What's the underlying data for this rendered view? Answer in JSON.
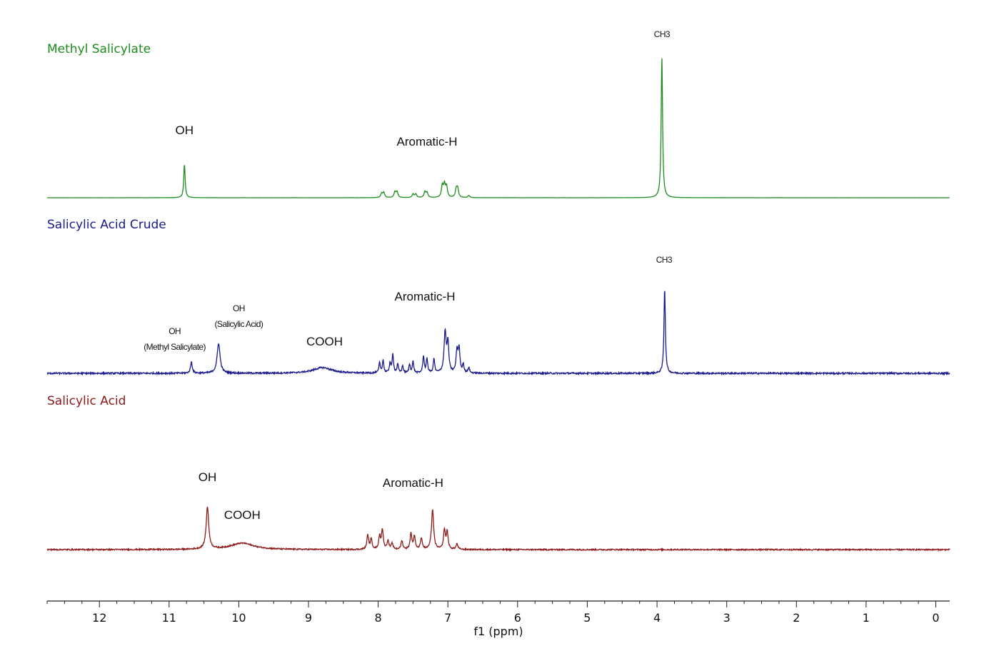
{
  "chart_data": {
    "type": "line",
    "xlabel": "f1 (ppm)",
    "xlim": [
      12.75,
      -0.2
    ],
    "x_reversed": true,
    "grid": false,
    "legend": "none",
    "x_ticks": [
      12,
      11,
      10,
      9,
      8,
      7,
      6,
      5,
      4,
      3,
      2,
      1,
      0
    ],
    "x_minor_step": 0.25,
    "series": [
      {
        "name": "Methyl Salicylate",
        "color": "#1e8c1e",
        "noise": 0.05,
        "peaks": [
          {
            "x": 10.78,
            "height": 47,
            "width": 0.012
          },
          {
            "x": 7.95,
            "height": 6,
            "width": 0.015
          },
          {
            "x": 7.92,
            "height": 7,
            "width": 0.015
          },
          {
            "x": 7.76,
            "height": 8,
            "width": 0.015
          },
          {
            "x": 7.73,
            "height": 8,
            "width": 0.015
          },
          {
            "x": 7.5,
            "height": 5,
            "width": 0.015
          },
          {
            "x": 7.46,
            "height": 5,
            "width": 0.015
          },
          {
            "x": 7.33,
            "height": 8,
            "width": 0.015
          },
          {
            "x": 7.3,
            "height": 7,
            "width": 0.015
          },
          {
            "x": 7.08,
            "height": 16,
            "width": 0.015
          },
          {
            "x": 7.05,
            "height": 17,
            "width": 0.015
          },
          {
            "x": 7.02,
            "height": 15,
            "width": 0.015
          },
          {
            "x": 6.88,
            "height": 11,
            "width": 0.015
          },
          {
            "x": 6.86,
            "height": 12,
            "width": 0.015
          },
          {
            "x": 6.7,
            "height": 3,
            "width": 0.015
          },
          {
            "x": 3.93,
            "height": 197,
            "width": 0.012
          }
        ],
        "labels": [
          {
            "lines": [
              "OH"
            ],
            "x": 10.78,
            "y": 188,
            "size": "big"
          },
          {
            "lines": [
              "Aromatic-H"
            ],
            "x": 7.3,
            "y": 204,
            "size": "big"
          },
          {
            "lines": [
              "CH3"
            ],
            "x": 3.93,
            "y": 52,
            "size": "small"
          }
        ]
      },
      {
        "name": "Salicylic Acid Crude",
        "color": "#1a1a8c",
        "noise": 1.1,
        "peaks": [
          {
            "x": 10.68,
            "height": 16,
            "width": 0.015
          },
          {
            "x": 10.29,
            "height": 42,
            "width": 0.025
          },
          {
            "x": 8.8,
            "height": 8,
            "width": 0.16
          },
          {
            "x": 7.98,
            "height": 14,
            "width": 0.012
          },
          {
            "x": 7.93,
            "height": 18,
            "width": 0.012
          },
          {
            "x": 7.83,
            "height": 14,
            "width": 0.012
          },
          {
            "x": 7.79,
            "height": 26,
            "width": 0.012
          },
          {
            "x": 7.72,
            "height": 12,
            "width": 0.012
          },
          {
            "x": 7.65,
            "height": 10,
            "width": 0.012
          },
          {
            "x": 7.55,
            "height": 12,
            "width": 0.012
          },
          {
            "x": 7.5,
            "height": 16,
            "width": 0.012
          },
          {
            "x": 7.35,
            "height": 24,
            "width": 0.012
          },
          {
            "x": 7.3,
            "height": 20,
            "width": 0.012
          },
          {
            "x": 7.2,
            "height": 20,
            "width": 0.012
          },
          {
            "x": 7.04,
            "height": 57,
            "width": 0.018
          },
          {
            "x": 7.0,
            "height": 40,
            "width": 0.015
          },
          {
            "x": 6.87,
            "height": 30,
            "width": 0.015
          },
          {
            "x": 6.84,
            "height": 33,
            "width": 0.015
          },
          {
            "x": 6.78,
            "height": 12,
            "width": 0.012
          },
          {
            "x": 6.7,
            "height": 8,
            "width": 0.012
          },
          {
            "x": 3.89,
            "height": 120,
            "width": 0.012
          }
        ],
        "labels": [
          {
            "lines": [
              "OH",
              "(Methyl Salicylate)"
            ],
            "x": 10.92,
            "y": 468,
            "size": "small"
          },
          {
            "lines": [
              "OH",
              "(Salicylic Acid)"
            ],
            "x": 10.0,
            "y": 436,
            "size": "small"
          },
          {
            "lines": [
              "COOH"
            ],
            "x": 8.77,
            "y": 484,
            "size": "big"
          },
          {
            "lines": [
              "Aromatic-H"
            ],
            "x": 7.33,
            "y": 421,
            "size": "big"
          },
          {
            "lines": [
              "CH3"
            ],
            "x": 3.9,
            "y": 368,
            "size": "small"
          }
        ]
      },
      {
        "name": "Salicylic Acid",
        "color": "#8c1a1a",
        "noise": 0.9,
        "peaks": [
          {
            "x": 10.45,
            "height": 59,
            "width": 0.022
          },
          {
            "x": 9.95,
            "height": 9,
            "width": 0.2
          },
          {
            "x": 8.15,
            "height": 20,
            "width": 0.015
          },
          {
            "x": 8.1,
            "height": 14,
            "width": 0.015
          },
          {
            "x": 7.98,
            "height": 18,
            "width": 0.015
          },
          {
            "x": 7.94,
            "height": 27,
            "width": 0.015
          },
          {
            "x": 7.86,
            "height": 12,
            "width": 0.015
          },
          {
            "x": 7.8,
            "height": 8,
            "width": 0.015
          },
          {
            "x": 7.66,
            "height": 12,
            "width": 0.015
          },
          {
            "x": 7.53,
            "height": 22,
            "width": 0.015
          },
          {
            "x": 7.48,
            "height": 18,
            "width": 0.015
          },
          {
            "x": 7.38,
            "height": 16,
            "width": 0.015
          },
          {
            "x": 7.22,
            "height": 56,
            "width": 0.018
          },
          {
            "x": 7.05,
            "height": 27,
            "width": 0.015
          },
          {
            "x": 7.01,
            "height": 24,
            "width": 0.015
          },
          {
            "x": 6.87,
            "height": 8,
            "width": 0.015
          }
        ],
        "labels": [
          {
            "lines": [
              "OH"
            ],
            "x": 10.45,
            "y": 674,
            "size": "big"
          },
          {
            "lines": [
              "COOH"
            ],
            "x": 9.95,
            "y": 727,
            "size": "big"
          },
          {
            "lines": [
              "Aromatic-H"
            ],
            "x": 7.5,
            "y": 682,
            "size": "big"
          }
        ]
      }
    ]
  }
}
